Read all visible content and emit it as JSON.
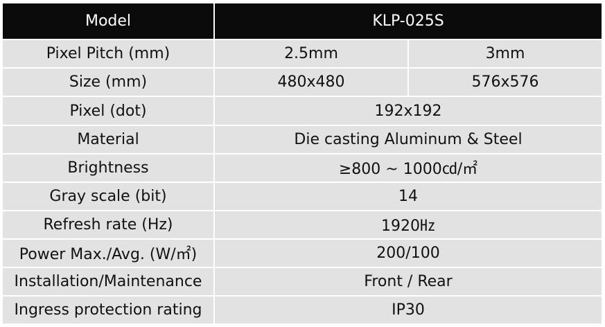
{
  "header": {
    "label": "Model",
    "value": "KLP-025S"
  },
  "rows": [
    {
      "label": "Pixel Pitch (mm)",
      "values": [
        "2.5mm",
        "3mm"
      ]
    },
    {
      "label": "Size (mm)",
      "values": [
        "480x480",
        "576x576"
      ]
    },
    {
      "label": "Pixel (dot)",
      "value": "192x192"
    },
    {
      "label": "Material",
      "value": "Die casting Aluminum & Steel"
    },
    {
      "label": "Brightness",
      "value": "≥800 ~ 1000㏅/㎡"
    },
    {
      "label": "Gray scale (bit)",
      "value": "14"
    },
    {
      "label": "Refresh rate (Hz)",
      "value": "1920㎐"
    },
    {
      "label": "Power Max./Avg. (W/㎡)",
      "value": "200/100"
    },
    {
      "label": "Installation/Maintenance",
      "value": "Front / Rear"
    },
    {
      "label": "Ingress protection rating",
      "value": "IP30"
    }
  ]
}
